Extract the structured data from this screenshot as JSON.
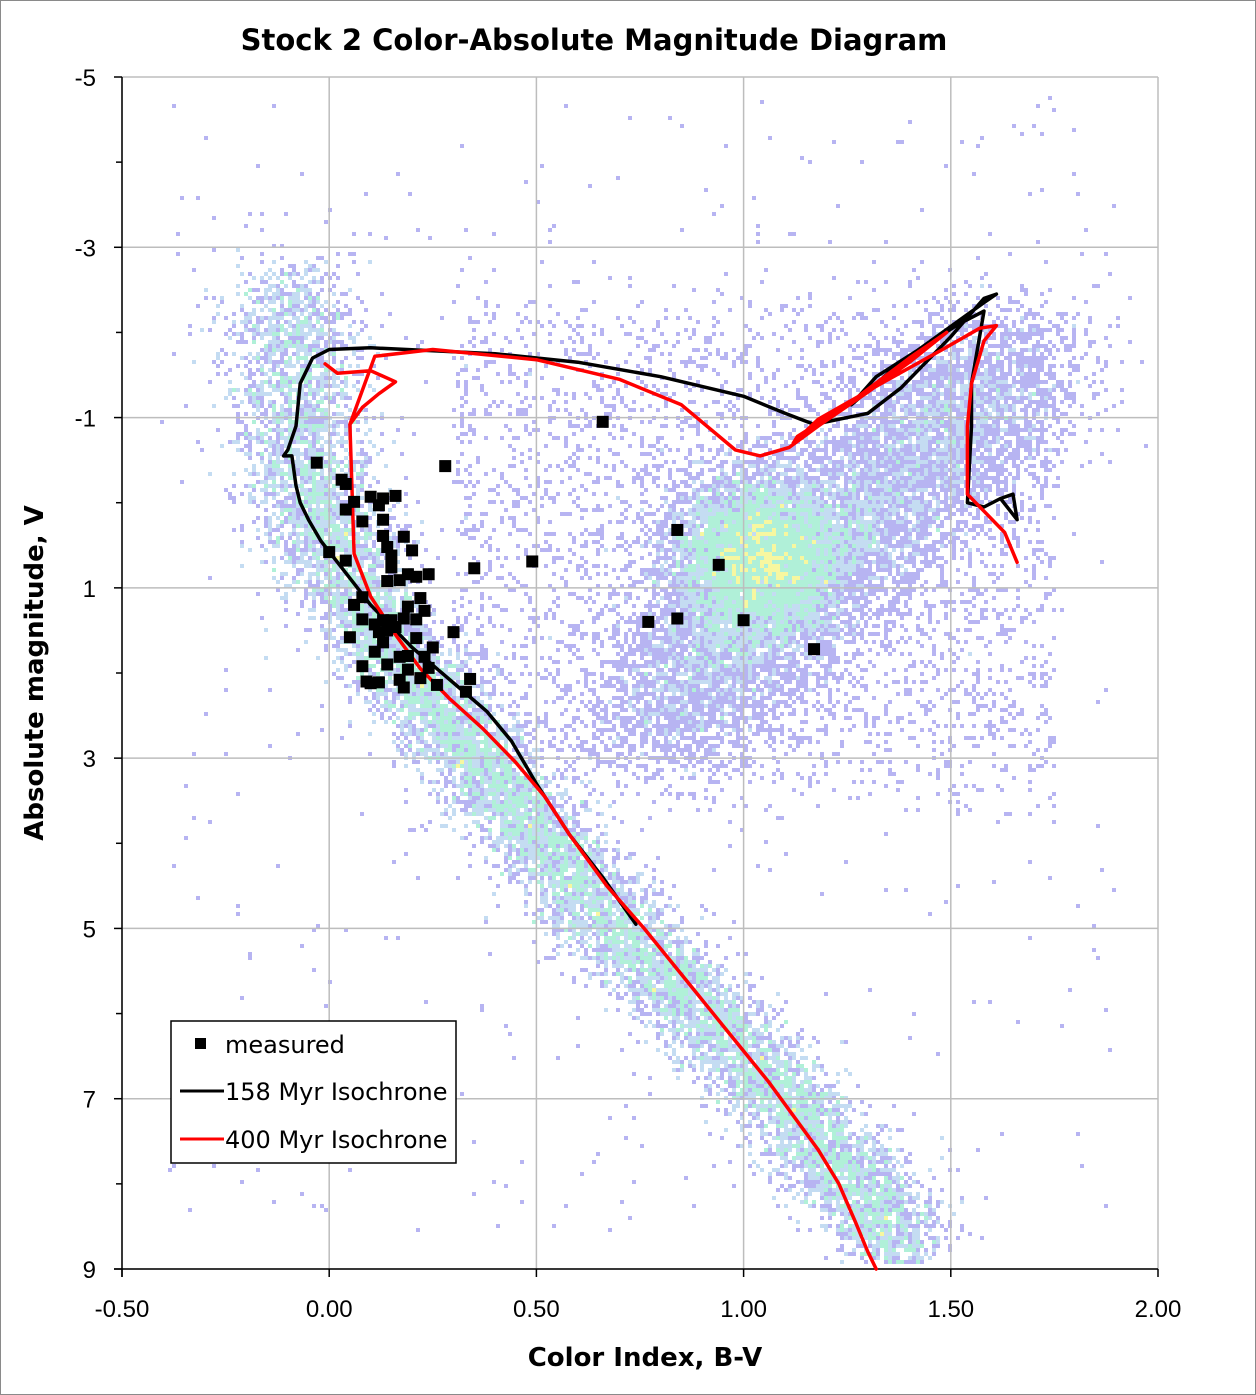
{
  "chart_data": {
    "type": "scatter",
    "title": "Stock 2 Color-Absolute Magnitude Diagram",
    "xlabel": "Color Index, B-V",
    "ylabel": "Absolute magnitude, V",
    "xlim": [
      -0.5,
      2.0
    ],
    "ylim": [
      -5,
      9
    ],
    "y_inverted": true,
    "grid": true,
    "legend_position": "bottom-left",
    "x_ticks": [
      "-0.50",
      "0.00",
      "0.50",
      "1.00",
      "1.50",
      "2.00"
    ],
    "y_ticks": [
      "-5",
      "-3",
      "-1",
      "1",
      "3",
      "5",
      "7",
      "9"
    ],
    "background_density": "Gaia-like field star density heatmap (violet low, cyan/green, yellow, orange-red high) along main sequence and red clump",
    "series": [
      {
        "name": "measured",
        "kind": "markers",
        "color": "#000000",
        "points": [
          [
            0.66,
            -0.95
          ],
          [
            -0.03,
            -0.47
          ],
          [
            0.28,
            -0.43
          ],
          [
            0.03,
            -0.27
          ],
          [
            0.04,
            -0.22
          ],
          [
            0.1,
            -0.07
          ],
          [
            0.16,
            -0.08
          ],
          [
            0.06,
            -0.01
          ],
          [
            0.13,
            -0.05
          ],
          [
            0.04,
            0.08
          ],
          [
            0.12,
            0.03
          ],
          [
            0.08,
            0.22
          ],
          [
            0.13,
            0.2
          ],
          [
            0.13,
            0.39
          ],
          [
            0.18,
            0.4
          ],
          [
            0.14,
            0.52
          ],
          [
            0.2,
            0.56
          ],
          [
            0.0,
            0.58
          ],
          [
            0.04,
            0.68
          ],
          [
            0.15,
            0.62
          ],
          [
            0.15,
            0.76
          ],
          [
            0.84,
            0.32
          ],
          [
            0.49,
            0.69
          ],
          [
            0.35,
            0.77
          ],
          [
            0.94,
            0.73
          ],
          [
            0.24,
            0.84
          ],
          [
            0.19,
            0.84
          ],
          [
            0.21,
            0.87
          ],
          [
            0.14,
            0.92
          ],
          [
            0.17,
            0.91
          ],
          [
            0.08,
            1.11
          ],
          [
            0.22,
            1.12
          ],
          [
            0.06,
            1.2
          ],
          [
            0.19,
            1.22
          ],
          [
            0.23,
            1.27
          ],
          [
            0.08,
            1.37
          ],
          [
            0.13,
            1.38
          ],
          [
            0.15,
            1.38
          ],
          [
            0.18,
            1.36
          ],
          [
            0.21,
            1.37
          ],
          [
            0.11,
            1.43
          ],
          [
            0.16,
            1.46
          ],
          [
            0.12,
            1.52
          ],
          [
            0.14,
            1.5
          ],
          [
            0.05,
            1.58
          ],
          [
            0.21,
            1.59
          ],
          [
            0.13,
            1.64
          ],
          [
            0.25,
            1.7
          ],
          [
            0.11,
            1.75
          ],
          [
            0.19,
            1.8
          ],
          [
            0.17,
            1.81
          ],
          [
            0.23,
            1.81
          ],
          [
            0.08,
            1.92
          ],
          [
            0.14,
            1.9
          ],
          [
            0.24,
            1.94
          ],
          [
            0.19,
            1.96
          ],
          [
            0.22,
            2.06
          ],
          [
            0.34,
            2.07
          ],
          [
            0.09,
            2.1
          ],
          [
            0.12,
            2.11
          ],
          [
            0.17,
            2.08
          ],
          [
            0.1,
            2.12
          ],
          [
            0.26,
            2.14
          ],
          [
            0.18,
            2.17
          ],
          [
            0.33,
            2.22
          ],
          [
            0.3,
            1.52
          ],
          [
            0.77,
            1.4
          ],
          [
            0.84,
            1.36
          ],
          [
            1.0,
            1.38
          ],
          [
            1.17,
            1.72
          ]
        ]
      },
      {
        "name": "158 Myr Isochrone",
        "kind": "line",
        "color": "#000000",
        "points": [
          [
            -0.11,
            -0.55
          ],
          [
            -0.1,
            -0.62
          ],
          [
            -0.08,
            -0.9
          ],
          [
            -0.07,
            -1.4
          ],
          [
            -0.04,
            -1.7
          ],
          [
            0.0,
            -1.8
          ],
          [
            0.1,
            -1.82
          ],
          [
            0.4,
            -1.75
          ],
          [
            0.6,
            -1.65
          ],
          [
            0.8,
            -1.48
          ],
          [
            1.0,
            -1.25
          ],
          [
            1.1,
            -1.05
          ],
          [
            1.17,
            -0.92
          ],
          [
            1.3,
            -1.05
          ],
          [
            1.38,
            -1.35
          ],
          [
            1.5,
            -1.95
          ],
          [
            1.58,
            -2.4
          ],
          [
            1.61,
            -2.45
          ],
          [
            1.58,
            -2.35
          ],
          [
            1.48,
            -2.0
          ],
          [
            1.38,
            -1.65
          ],
          [
            1.26,
            -1.15
          ],
          [
            1.32,
            -1.48
          ],
          [
            1.52,
            -2.1
          ],
          [
            1.58,
            -2.25
          ],
          [
            1.55,
            -1.4
          ],
          [
            1.55,
            -0.9
          ],
          [
            1.54,
            0.0
          ],
          [
            1.58,
            0.05
          ],
          [
            1.62,
            -0.05
          ],
          [
            1.65,
            -0.1
          ],
          [
            1.66,
            0.2
          ],
          [
            1.62,
            -0.05
          ],
          [
            1.58,
            0.05
          ],
          [
            1.54,
            0.0
          ],
          [
            1.55,
            -0.9
          ],
          [
            1.55,
            -1.4
          ],
          [
            1.58,
            -2.25
          ],
          [
            1.52,
            -2.1
          ],
          [
            1.32,
            -1.48
          ],
          [
            1.26,
            -1.15
          ],
          [
            1.38,
            -1.65
          ],
          [
            1.48,
            -2.0
          ],
          [
            1.58,
            -2.35
          ],
          [
            1.61,
            -2.45
          ],
          [
            1.58,
            -2.4
          ],
          [
            1.5,
            -1.95
          ],
          [
            1.38,
            -1.35
          ],
          [
            1.3,
            -1.05
          ],
          [
            1.17,
            -0.92
          ],
          [
            1.1,
            -1.05
          ],
          [
            1.0,
            -1.25
          ],
          [
            0.8,
            -1.48
          ],
          [
            0.6,
            -1.65
          ],
          [
            0.4,
            -1.75
          ],
          [
            0.1,
            -1.82
          ],
          [
            0.0,
            -1.8
          ],
          [
            -0.04,
            -1.7
          ],
          [
            -0.07,
            -1.4
          ],
          [
            -0.08,
            -0.9
          ],
          [
            -0.1,
            -0.62
          ],
          [
            -0.11,
            -0.55
          ],
          [
            -0.09,
            -0.55
          ],
          [
            -0.08,
            -0.2
          ],
          [
            -0.07,
            0.0
          ],
          [
            -0.05,
            0.2
          ],
          [
            -0.02,
            0.45
          ],
          [
            0.02,
            0.7
          ],
          [
            0.06,
            0.95
          ],
          [
            0.1,
            1.2
          ],
          [
            0.15,
            1.45
          ],
          [
            0.2,
            1.7
          ],
          [
            0.26,
            1.95
          ],
          [
            0.32,
            2.2
          ],
          [
            0.38,
            2.45
          ],
          [
            0.44,
            2.8
          ],
          [
            0.5,
            3.3
          ],
          [
            0.58,
            3.9
          ],
          [
            0.66,
            4.4
          ],
          [
            0.74,
            4.95
          ]
        ]
      },
      {
        "name": "400 Myr Isochrone",
        "kind": "line",
        "color": "#ff0000",
        "points": [
          [
            -0.01,
            -1.63
          ],
          [
            0.02,
            -1.52
          ],
          [
            0.1,
            -1.55
          ],
          [
            0.16,
            -1.42
          ],
          [
            0.12,
            -1.28
          ],
          [
            0.08,
            -1.12
          ],
          [
            0.05,
            -0.92
          ],
          [
            0.11,
            -1.72
          ],
          [
            0.25,
            -1.8
          ],
          [
            0.5,
            -1.68
          ],
          [
            0.7,
            -1.45
          ],
          [
            0.85,
            -1.15
          ],
          [
            0.98,
            -0.62
          ],
          [
            1.04,
            -0.55
          ],
          [
            1.11,
            -0.65
          ],
          [
            1.18,
            -0.9
          ],
          [
            1.3,
            -1.3
          ],
          [
            1.4,
            -1.65
          ],
          [
            1.49,
            -2.0
          ],
          [
            1.4,
            -1.7
          ],
          [
            1.25,
            -1.15
          ],
          [
            1.13,
            -0.78
          ],
          [
            1.12,
            -0.7
          ],
          [
            1.18,
            -0.98
          ],
          [
            1.35,
            -1.45
          ],
          [
            1.48,
            -1.8
          ],
          [
            1.57,
            -2.05
          ],
          [
            1.61,
            -2.08
          ],
          [
            1.58,
            -1.9
          ],
          [
            1.55,
            -1.4
          ],
          [
            1.54,
            -0.9
          ],
          [
            1.54,
            -0.1
          ],
          [
            1.58,
            0.1
          ],
          [
            1.63,
            0.35
          ],
          [
            1.66,
            0.7
          ],
          [
            1.63,
            0.35
          ],
          [
            1.58,
            0.1
          ],
          [
            1.54,
            -0.1
          ],
          [
            1.54,
            -0.9
          ],
          [
            1.55,
            -1.4
          ],
          [
            1.58,
            -1.9
          ],
          [
            1.61,
            -2.08
          ],
          [
            1.57,
            -2.05
          ],
          [
            1.48,
            -1.8
          ],
          [
            1.35,
            -1.45
          ],
          [
            1.18,
            -0.98
          ],
          [
            1.12,
            -0.7
          ],
          [
            1.13,
            -0.78
          ],
          [
            1.25,
            -1.15
          ],
          [
            1.4,
            -1.7
          ],
          [
            1.49,
            -2.0
          ],
          [
            1.4,
            -1.65
          ],
          [
            1.3,
            -1.3
          ],
          [
            1.18,
            -0.9
          ],
          [
            1.11,
            -0.65
          ],
          [
            1.04,
            -0.55
          ],
          [
            0.98,
            -0.62
          ],
          [
            0.85,
            -1.15
          ],
          [
            0.7,
            -1.45
          ],
          [
            0.5,
            -1.68
          ],
          [
            0.25,
            -1.8
          ],
          [
            0.11,
            -1.72
          ],
          [
            0.05,
            -0.92
          ],
          [
            0.06,
            0.6
          ],
          [
            0.1,
            1.1
          ],
          [
            0.16,
            1.55
          ],
          [
            0.22,
            1.95
          ],
          [
            0.29,
            2.3
          ],
          [
            0.37,
            2.65
          ],
          [
            0.45,
            3.05
          ],
          [
            0.52,
            3.45
          ],
          [
            0.58,
            3.9
          ],
          [
            0.67,
            4.5
          ],
          [
            0.76,
            5.0
          ],
          [
            0.86,
            5.6
          ],
          [
            0.96,
            6.2
          ],
          [
            1.06,
            6.8
          ],
          [
            1.12,
            7.2
          ],
          [
            1.18,
            7.6
          ],
          [
            1.23,
            8.0
          ],
          [
            1.27,
            8.45
          ],
          [
            1.3,
            8.8
          ],
          [
            1.32,
            9.0
          ]
        ]
      }
    ]
  },
  "legend": {
    "items": [
      {
        "label": "measured",
        "type": "marker",
        "color": "#000000"
      },
      {
        "label": "158 Myr Isochrone",
        "type": "line",
        "color": "#000000"
      },
      {
        "label": "400 Myr Isochrone",
        "type": "line",
        "color": "#ff0000"
      }
    ]
  },
  "colors": {
    "grid": "#bdbdbd",
    "density_low": "#b7b4f2",
    "density_mid": "#b0f0d8",
    "density_high": "#f7f7a0",
    "density_peak": "#f4b096"
  }
}
